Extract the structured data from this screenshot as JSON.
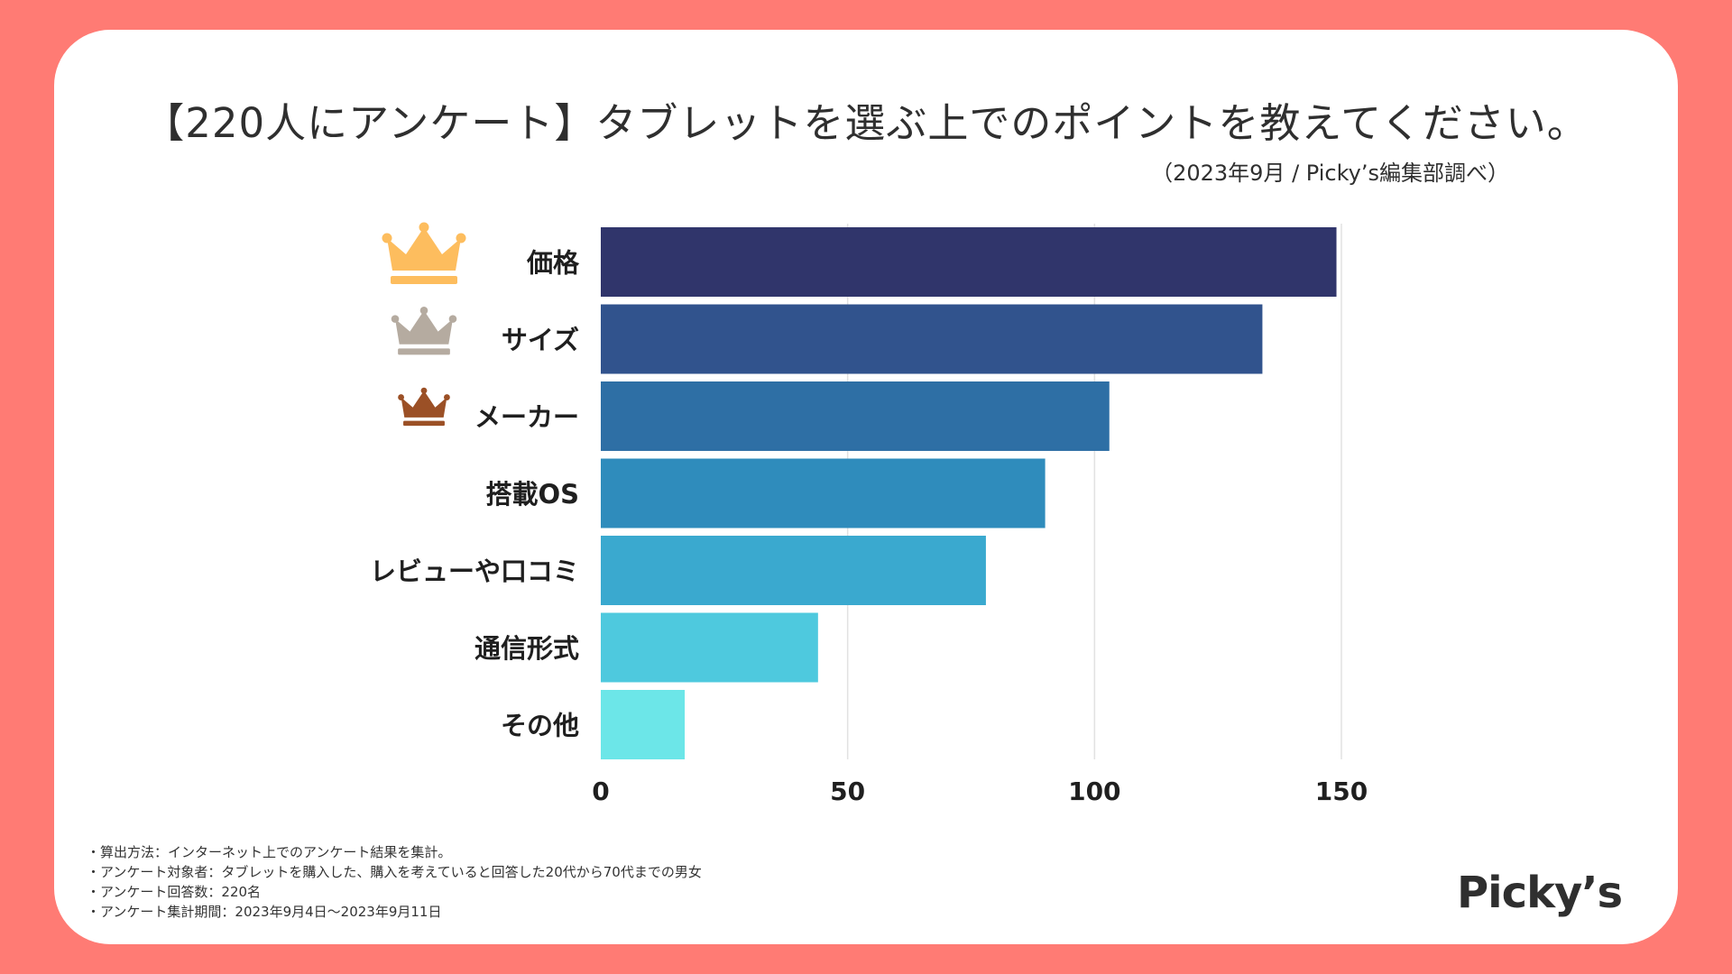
{
  "title": "【220人にアンケート】タブレットを選ぶ上でのポイントを教えてください。",
  "subtitle": "（2023年9月 / Picky’s編集部調べ）",
  "chart_data": {
    "type": "bar",
    "orientation": "horizontal",
    "title": "【220人にアンケート】タブレットを選ぶ上でのポイントを教えてください。",
    "categories": [
      "価格",
      "サイズ",
      "メーカー",
      "搭載OS",
      "レビューや口コミ",
      "通信形式",
      "その他"
    ],
    "values": [
      149,
      134,
      103,
      90,
      78,
      44,
      17
    ],
    "colors": [
      "#30356b",
      "#31538d",
      "#2e6fa5",
      "#2f8cbc",
      "#3aa9cf",
      "#4ec9de",
      "#6ce6e8"
    ],
    "xlim": [
      0,
      150
    ],
    "xticks": [
      0,
      50,
      100,
      150
    ],
    "grid": true,
    "xlabel": "",
    "ylabel": "",
    "rank_crowns": [
      {
        "rank": 1,
        "color": "#fdbd5e",
        "icon": "gold-crown-icon"
      },
      {
        "rank": 2,
        "color": "#b5aba0",
        "icon": "silver-crown-icon"
      },
      {
        "rank": 3,
        "color": "#9b5026",
        "icon": "bronze-crown-icon"
      }
    ]
  },
  "notes": [
    "・算出方法：インターネット上でのアンケート結果を集計。",
    "・アンケート対象者：タブレットを購入した、購入を考えていると回答した20代から70代までの男女",
    "・アンケート回答数：220名",
    "・アンケート集計期間：2023年9月4日〜2023年9月11日"
  ],
  "logo": "Picky’s"
}
